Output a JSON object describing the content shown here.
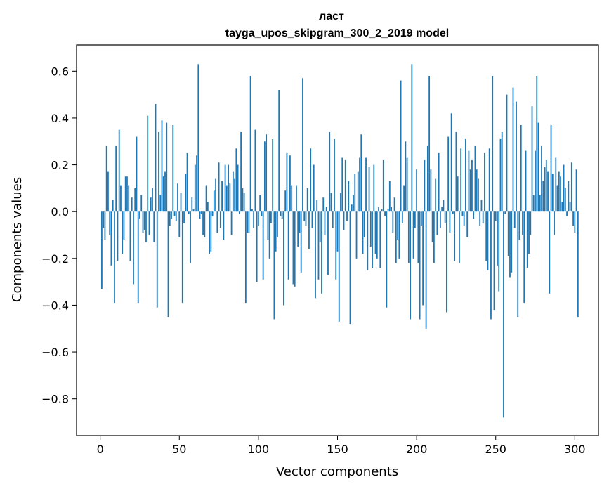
{
  "chart_data": {
    "type": "bar",
    "title": "ласт",
    "subtitle": "tayga_upos_skipgram_300_2_2019 model",
    "xlabel": "Vector components",
    "ylabel": "Components values",
    "xlim": [
      -14.95,
      314.95
    ],
    "ylim": [
      -0.957,
      0.712
    ],
    "xticks": [
      0,
      50,
      100,
      150,
      200,
      250,
      300
    ],
    "yticks": [
      -0.8,
      -0.6,
      -0.4,
      -0.2,
      0.0,
      0.2,
      0.4,
      0.6
    ],
    "ytick_labels": [
      "−0.8",
      "−0.6",
      "−0.4",
      "−0.2",
      "0.0",
      "0.2",
      "0.4",
      "0.6"
    ],
    "xtick_labels": [
      "0",
      "50",
      "100",
      "150",
      "200",
      "250",
      "300"
    ],
    "grid": false,
    "bar_color": "#1f77b4",
    "x_start": 1,
    "values": [
      -0.33,
      -0.07,
      -0.12,
      0.28,
      0.17,
      -0.1,
      -0.23,
      0.05,
      -0.39,
      0.28,
      -0.21,
      0.35,
      0.11,
      -0.18,
      -0.12,
      0.15,
      0.15,
      0.11,
      -0.21,
      0.06,
      -0.31,
      0.1,
      0.32,
      -0.39,
      -0.03,
      0.07,
      -0.09,
      -0.08,
      -0.13,
      0.41,
      -0.1,
      0.06,
      0.1,
      -0.13,
      0.46,
      -0.41,
      0.34,
      0.07,
      0.39,
      0.15,
      0.17,
      0.38,
      -0.45,
      -0.06,
      -0.03,
      0.37,
      -0.02,
      -0.04,
      0.12,
      -0.11,
      0.08,
      -0.39,
      -0.05,
      0.16,
      0.25,
      -0.01,
      -0.22,
      0.06,
      0.01,
      0.2,
      0.24,
      0.63,
      -0.03,
      -0.01,
      -0.1,
      -0.11,
      0.11,
      0.04,
      -0.18,
      -0.17,
      -0.02,
      0.09,
      0.14,
      -0.09,
      0.21,
      -0.07,
      0.13,
      -0.12,
      0.2,
      0.11,
      0.2,
      0.12,
      -0.1,
      0.17,
      0.14,
      0.27,
      0.2,
      -0.01,
      0.34,
      0.1,
      0.08,
      -0.39,
      -0.09,
      -0.09,
      0.58,
      0.01,
      -0.07,
      0.35,
      -0.3,
      -0.06,
      0.07,
      -0.02,
      -0.29,
      0.3,
      0.33,
      -0.12,
      -0.2,
      -0.05,
      0.31,
      -0.46,
      -0.17,
      -0.11,
      0.52,
      -0.02,
      -0.03,
      -0.4,
      0.09,
      0.25,
      -0.29,
      0.24,
      0.11,
      -0.31,
      -0.32,
      0.11,
      -0.15,
      -0.09,
      -0.26,
      0.57,
      -0.04,
      -0.06,
      0.1,
      -0.16,
      0.27,
      -0.07,
      0.2,
      -0.37,
      0.05,
      -0.29,
      -0.13,
      -0.35,
      0.06,
      -0.1,
      0.02,
      -0.27,
      0.34,
      0.08,
      -0.07,
      0.31,
      -0.29,
      -0.17,
      -0.47,
      0.08,
      0.23,
      -0.08,
      0.22,
      -0.04,
      0.13,
      -0.48,
      0.03,
      0.07,
      0.16,
      -0.2,
      0.17,
      0.23,
      0.33,
      -0.18,
      -0.11,
      0.23,
      -0.25,
      0.19,
      -0.15,
      -0.24,
      0.2,
      -0.18,
      -0.2,
      0.02,
      -0.24,
      0.01,
      0.22,
      -0.02,
      -0.41,
      0.01,
      0.13,
      0.02,
      -0.09,
      0.06,
      -0.22,
      -0.12,
      -0.2,
      0.56,
      -0.05,
      0.11,
      0.3,
      0.23,
      -0.22,
      -0.46,
      0.63,
      -0.2,
      -0.07,
      0.18,
      -0.22,
      -0.46,
      -0.06,
      -0.4,
      0.22,
      -0.5,
      0.28,
      0.58,
      0.18,
      -0.13,
      -0.22,
      0.14,
      -0.1,
      0.25,
      -0.07,
      0.02,
      0.05,
      -0.05,
      -0.43,
      0.32,
      -0.09,
      0.42,
      -0.01,
      -0.21,
      0.34,
      0.15,
      -0.22,
      0.27,
      -0.02,
      -0.06,
      0.31,
      -0.11,
      0.26,
      0.18,
      0.22,
      -0.03,
      0.28,
      0.18,
      0.14,
      -0.06,
      0.05,
      -0.05,
      0.25,
      -0.21,
      -0.25,
      0.27,
      -0.46,
      0.58,
      -0.42,
      -0.04,
      -0.23,
      -0.34,
      0.31,
      0.34,
      -0.88,
      -0.01,
      0.5,
      -0.19,
      -0.28,
      -0.26,
      0.53,
      -0.07,
      0.47,
      -0.45,
      -0.12,
      0.37,
      -0.1,
      -0.39,
      0.26,
      -0.24,
      -0.18,
      -0.1,
      0.45,
      0.07,
      0.26,
      0.58,
      0.38,
      0.07,
      0.28,
      0.13,
      0.19,
      0.22,
      0.17,
      -0.35,
      0.37,
      0.16,
      -0.1,
      0.23,
      0.11,
      0.17,
      0.15,
      0.04,
      0.2,
      0.1,
      -0.02,
      0.13,
      0.04,
      0.21,
      -0.06,
      -0.09,
      0.18,
      -0.45
    ]
  }
}
